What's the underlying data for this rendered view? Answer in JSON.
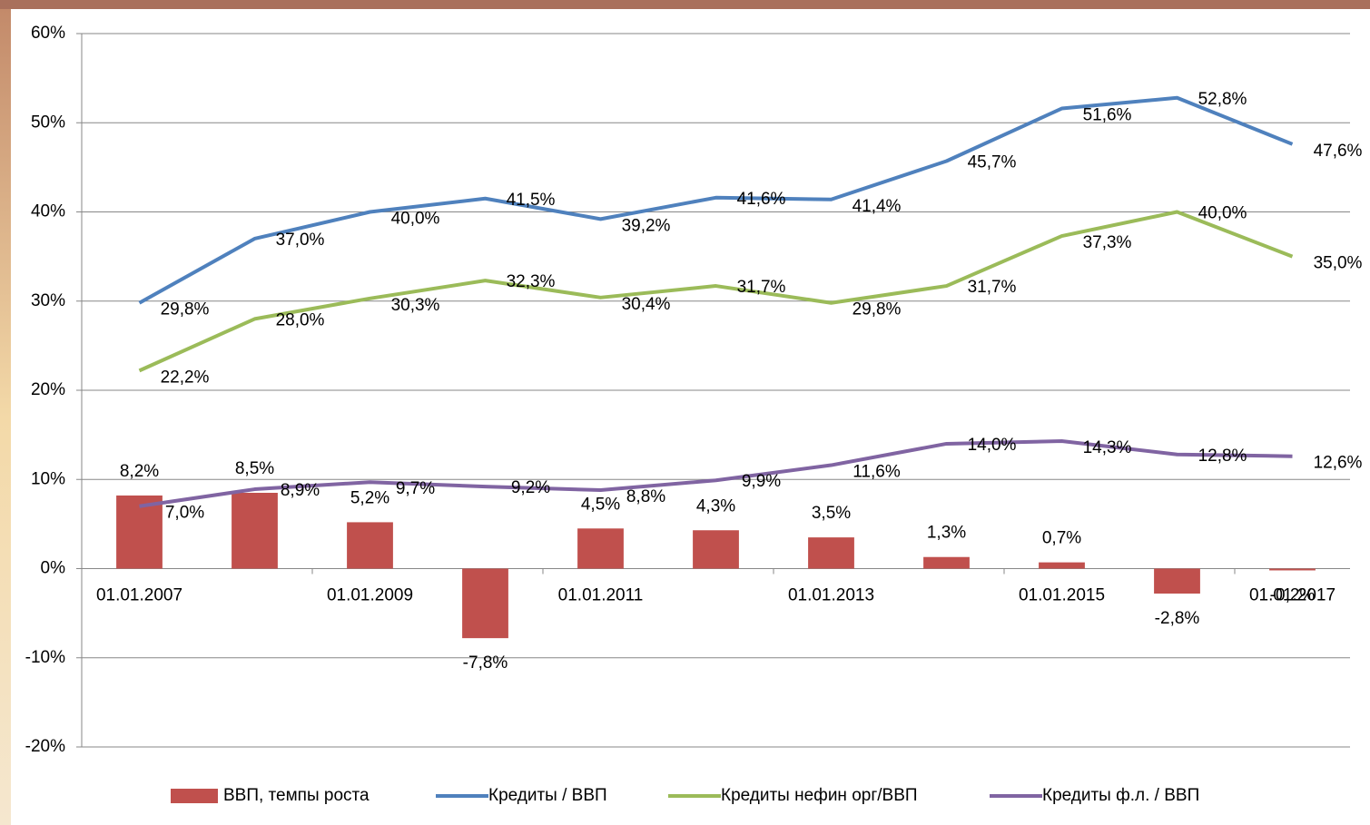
{
  "chart_data": {
    "type": "bar",
    "categories": [
      "01.01.2007",
      null,
      "01.01.2009",
      null,
      "01.01.2011",
      null,
      "01.01.2013",
      null,
      "01.01.2015",
      null,
      "01.01.2017"
    ],
    "ylim": [
      -20,
      60
    ],
    "yticks": [
      {
        "value": -20,
        "label": "-20%"
      },
      {
        "value": -10,
        "label": "-10%"
      },
      {
        "value": 0,
        "label": "0%"
      },
      {
        "value": 10,
        "label": "10%"
      },
      {
        "value": 20,
        "label": "20%"
      },
      {
        "value": 30,
        "label": "30%"
      },
      {
        "value": 40,
        "label": "40%"
      },
      {
        "value": 50,
        "label": "50%"
      },
      {
        "value": 60,
        "label": "60%"
      }
    ],
    "grid": true,
    "legend": "bottom",
    "series": [
      {
        "name": "ВВП, темпы роста",
        "type": "bar",
        "color": "#c0504d",
        "values": [
          8.2,
          8.5,
          5.2,
          -7.8,
          4.5,
          4.3,
          3.5,
          1.3,
          0.7,
          -2.8,
          -0.2
        ],
        "value_labels": [
          "8,2%",
          "8,5%",
          "5,2%",
          "-7,8%",
          "4,5%",
          "4,3%",
          "3,5%",
          "1,3%",
          "0,7%",
          "-2,8%",
          "-0,2%"
        ]
      },
      {
        "name": "Кредиты / ВВП",
        "type": "line",
        "color": "#4f81bd",
        "values": [
          29.8,
          37.0,
          40.0,
          41.5,
          39.2,
          41.6,
          41.4,
          45.7,
          51.6,
          52.8,
          47.6
        ],
        "value_labels": [
          "29,8%",
          "37,0%",
          "40,0%",
          "41,5%",
          "39,2%",
          "41,6%",
          "41,4%",
          "45,7%",
          "51,6%",
          "52,8%",
          "47,6%"
        ]
      },
      {
        "name": "Кредиты нефин орг/ВВП",
        "type": "line",
        "color": "#9bbb59",
        "values": [
          22.2,
          28.0,
          30.3,
          32.3,
          30.4,
          31.7,
          29.8,
          31.7,
          37.3,
          40.0,
          35.0
        ],
        "value_labels": [
          "22,2%",
          "28,0%",
          "30,3%",
          "32,3%",
          "30,4%",
          "31,7%",
          "29,8%",
          "31,7%",
          "37,3%",
          "40,0%",
          "35,0%"
        ]
      },
      {
        "name": "Кредиты ф.л. / ВВП",
        "type": "line",
        "color": "#8064a2",
        "values": [
          7.0,
          8.9,
          9.7,
          9.2,
          8.8,
          9.9,
          11.6,
          14.0,
          14.3,
          12.8,
          12.6
        ],
        "value_labels": [
          "7,0%",
          "8,9%",
          "9,7%",
          "9,2%",
          "8,8%",
          "9,9%",
          "11,6%",
          "14,0%",
          "14,3%",
          "12,8%",
          "12,6%"
        ]
      }
    ]
  }
}
